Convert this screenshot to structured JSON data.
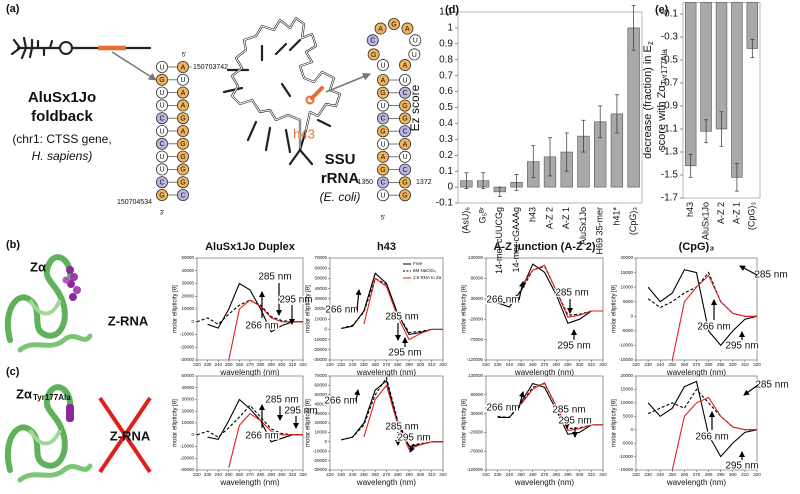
{
  "panel_a": {
    "label": "(a)",
    "alu": {
      "name": "AluSx1Jo",
      "name2": "foldback",
      "source": "(chr1: CTSS gene,",
      "species": "H. sapiens)",
      "start": "150703742",
      "end": "150704534",
      "five": "5'",
      "three": "3'",
      "left": [
        "U",
        "G",
        "U",
        "U",
        "C",
        "U",
        "C",
        "U",
        "U",
        "C",
        "G"
      ],
      "right": [
        "A",
        "U",
        "A",
        "A",
        "G",
        "A",
        "G",
        "G",
        "G",
        "G",
        "C"
      ]
    },
    "ssu": {
      "marker": "h43",
      "name": "SSU",
      "name2": "rRNA",
      "species": "(E. coli)",
      "start": "1350",
      "end": "1372",
      "five": "5'",
      "loop": [
        "U",
        "G",
        "C",
        "A",
        "G",
        "A",
        "U",
        "U",
        "A"
      ],
      "left": [
        "A",
        "G",
        "U",
        "C",
        "G",
        "U",
        "A",
        "G",
        "C",
        "U"
      ],
      "right": [
        "U",
        "C",
        "G",
        "G",
        "C",
        "A",
        "U",
        "C",
        "G",
        "G"
      ]
    }
  },
  "panel_b": {
    "label": "(b)",
    "title": "Zα",
    "target": "Z-RNA"
  },
  "panel_c": {
    "label": "(c)",
    "title": "Zα",
    "title_sub": "Tyr177Ala",
    "target": "Z-RNA"
  },
  "chart_data": [
    {
      "type": "bar",
      "label": "(d)",
      "ylabel": "Ez score",
      "color": "#a9a9a9",
      "categories": [
        "(AsU)₆",
        "G₅ᴮʳ",
        "14-mer cUUCGg",
        "14-mer cGAAAg",
        "h43",
        "A-Z 2",
        "A-Z 1",
        "AluSx1Jo",
        "H69 35-mer",
        "h41*",
        "(CpG)₃"
      ],
      "values": [
        0.04,
        0.04,
        -0.03,
        0.03,
        0.16,
        0.19,
        0.22,
        0.32,
        0.41,
        0.46,
        1.0
      ],
      "errors": [
        0.05,
        0.05,
        0.03,
        0.05,
        0.1,
        0.12,
        0.12,
        0.1,
        0.1,
        0.12,
        0.14
      ],
      "ylim": [
        -0.1,
        1.1
      ],
      "yticks": [
        -0.1,
        0,
        0.1,
        0.2,
        0.3,
        0.4,
        0.5,
        0.6,
        0.7,
        0.8,
        0.9,
        1,
        1.1
      ]
    },
    {
      "type": "bar",
      "label": "(e)",
      "ylabel": "decrease (fraction) in E",
      "ylabel_sub": "z",
      "ylabel2": "score with Zα",
      "ylabel2_sub": "Tyr177Ala",
      "color": "#a9a9a9",
      "categories": [
        "h43",
        "AluSx1Jo",
        "A-Z 2",
        "A-Z 1",
        "(CpG)₃"
      ],
      "values": [
        -1.42,
        -1.12,
        -1.1,
        -1.52,
        -0.4
      ],
      "errors": [
        0.1,
        0.1,
        0.15,
        0.12,
        0.08
      ],
      "ylim": [
        -1.7,
        0
      ],
      "yticks": [
        -1.7,
        -1.5,
        -1.3,
        -1.1,
        -0.9,
        -0.7,
        -0.5,
        -0.3,
        -0.1
      ]
    },
    {
      "type": "line",
      "title": "AluSx1Jo Duplex",
      "xlabel": "wavelength (nm)",
      "ylabel": "molar ellipticity [θ]",
      "x": [
        220,
        230,
        240,
        250,
        260,
        270,
        280,
        290,
        300,
        310,
        320
      ],
      "xlim": [
        220,
        320
      ],
      "xticks": [
        220,
        230,
        240,
        250,
        260,
        270,
        280,
        290,
        300,
        310,
        320
      ],
      "ylim": [
        -30000,
        50000
      ],
      "yticks": [
        -30000,
        -20000,
        -10000,
        0,
        10000,
        20000,
        30000,
        40000,
        50000
      ],
      "series": [
        {
          "color": "#000000",
          "values": [
            null,
            -2000,
            -5000,
            10000,
            30000,
            25000,
            10000,
            -8000,
            -3000,
            0,
            0
          ]
        },
        {
          "color": "#000000",
          "dashed": true,
          "values": [
            0,
            3000,
            -2000,
            6000,
            13000,
            17000,
            13000,
            4000,
            1000,
            0,
            0
          ]
        },
        {
          "color": "#e0201b",
          "values": [
            null,
            null,
            null,
            -30000,
            10000,
            17000,
            12000,
            3000,
            0,
            0,
            0
          ]
        }
      ],
      "annotations": [
        "266 nm",
        "285 nm",
        "295 nm"
      ]
    },
    {
      "type": "line",
      "title": "h43",
      "xlabel": "wavelength (nm)",
      "ylabel": "molar ellipticity [θ]",
      "legend": "upper right",
      "x": [
        220,
        230,
        240,
        250,
        260,
        270,
        280,
        290,
        300,
        310,
        320
      ],
      "xlim": [
        220,
        320
      ],
      "xticks": [
        220,
        230,
        240,
        250,
        260,
        270,
        280,
        290,
        300,
        310,
        320
      ],
      "ylim": [
        -30000,
        70000
      ],
      "yticks": [
        -30000,
        -20000,
        -10000,
        0,
        10000,
        20000,
        30000,
        40000,
        50000,
        60000,
        70000
      ],
      "series": [
        {
          "name": "Free",
          "color": "#000000",
          "values": [
            null,
            1000,
            3000,
            18000,
            55000,
            45000,
            15000,
            -5000,
            -3000,
            0,
            0
          ]
        },
        {
          "name": "6M NaClO₄",
          "color": "#000000",
          "dashed": true,
          "values": [
            null,
            1000,
            4000,
            17000,
            50000,
            44000,
            15000,
            -3000,
            -2000,
            0,
            0
          ]
        },
        {
          "name": "1:6 RNA to Zα",
          "color": "#e0201b",
          "values": [
            null,
            null,
            null,
            5000,
            50000,
            42000,
            12000,
            -10000,
            -4000,
            0,
            0
          ]
        }
      ],
      "annotations": [
        "266 nm",
        "285 nm",
        "295 nm"
      ]
    },
    {
      "type": "line",
      "title": "A-Z junction (A-Z 2)",
      "xlabel": "wavelength (nm)",
      "ylabel": "molar ellipticity [θ]",
      "x": [
        220,
        230,
        240,
        250,
        260,
        270,
        280,
        290,
        300,
        310,
        320
      ],
      "xlim": [
        220,
        320
      ],
      "xticks": [
        220,
        230,
        240,
        250,
        260,
        270,
        280,
        290,
        300,
        310,
        320
      ],
      "ylim": [
        -120000,
        130000
      ],
      "yticks": [
        -120000,
        -70000,
        -20000,
        30000,
        80000,
        130000
      ],
      "series": [
        {
          "color": "#000000",
          "values": [
            null,
            20000,
            10000,
            50000,
            115000,
            95000,
            40000,
            -30000,
            -20000,
            0,
            0
          ]
        },
        {
          "color": "#000000",
          "dashed": true,
          "values": [
            null,
            22000,
            20000,
            50000,
            100000,
            110000,
            50000,
            -10000,
            -8000,
            0,
            0
          ]
        },
        {
          "color": "#e0201b",
          "values": [
            null,
            null,
            null,
            60000,
            100000,
            112000,
            50000,
            -15000,
            -10000,
            0,
            0
          ]
        }
      ],
      "annotations": [
        "266 nm",
        "285 nm",
        "295 nm"
      ]
    },
    {
      "type": "line",
      "title": "(CpG)₃",
      "xlabel": "wavelength (nm)",
      "ylabel": "molar ellipticity [θ]",
      "x": [
        220,
        230,
        240,
        250,
        260,
        270,
        280,
        290,
        300,
        310,
        320
      ],
      "xlim": [
        220,
        320
      ],
      "xticks": [
        220,
        230,
        240,
        250,
        260,
        270,
        280,
        290,
        300,
        310,
        320
      ],
      "ylim": [
        -15000,
        20000
      ],
      "yticks": [
        -15000,
        -10000,
        -5000,
        0,
        5000,
        10000,
        15000,
        20000
      ],
      "series": [
        {
          "color": "#000000",
          "values": [
            null,
            10000,
            5000,
            8000,
            16000,
            15000,
            -5000,
            -10000,
            -5000,
            -1000,
            0
          ]
        },
        {
          "color": "#000000",
          "dashed": true,
          "values": [
            null,
            6000,
            3000,
            5000,
            8000,
            10000,
            15000,
            5000,
            1000,
            0,
            0
          ]
        },
        {
          "color": "#e0201b",
          "values": [
            null,
            null,
            null,
            -15000,
            5000,
            10000,
            14000,
            5000,
            1000,
            0,
            0
          ]
        }
      ],
      "annotations": [
        "266 nm",
        "285 nm",
        "295 nm"
      ]
    },
    {
      "type": "line",
      "xlabel": "wavelength (nm)",
      "ylabel": "molar ellipticity [θ]",
      "x": [
        220,
        230,
        240,
        250,
        260,
        270,
        280,
        290,
        300,
        310,
        320
      ],
      "xlim": [
        220,
        320
      ],
      "xticks": [
        220,
        230,
        240,
        250,
        260,
        270,
        280,
        290,
        300,
        310,
        320
      ],
      "ylim": [
        -30000,
        50000
      ],
      "yticks": [
        -30000,
        -20000,
        -10000,
        0,
        10000,
        20000,
        30000,
        40000,
        50000
      ],
      "series": [
        {
          "color": "#000000",
          "values": [
            null,
            -2000,
            -4000,
            12000,
            30000,
            22000,
            12000,
            -6000,
            -3000,
            0,
            0
          ]
        },
        {
          "color": "#000000",
          "dashed": true,
          "values": [
            0,
            3000,
            -2000,
            6000,
            15000,
            25000,
            15000,
            5000,
            1000,
            0,
            0
          ]
        },
        {
          "color": "#e0201b",
          "values": [
            null,
            null,
            null,
            -28000,
            8000,
            18000,
            12000,
            3000,
            0,
            0,
            0
          ]
        }
      ],
      "annotations": [
        "266 nm",
        "285 nm",
        "295 nm"
      ]
    },
    {
      "type": "line",
      "xlabel": "wavelength (nm)",
      "ylabel": "molar ellipticity [θ]",
      "x": [
        220,
        230,
        240,
        250,
        260,
        270,
        280,
        290,
        300,
        310,
        320
      ],
      "xlim": [
        220,
        320
      ],
      "xticks": [
        220,
        230,
        240,
        250,
        260,
        270,
        280,
        290,
        300,
        310,
        320
      ],
      "ylim": [
        -30000,
        70000
      ],
      "yticks": [
        -30000,
        -20000,
        -10000,
        0,
        10000,
        20000,
        30000,
        40000,
        50000,
        60000,
        70000
      ],
      "series": [
        {
          "color": "#000000",
          "values": [
            null,
            2000,
            5000,
            20000,
            55000,
            65000,
            20000,
            -5000,
            -3000,
            0,
            0
          ]
        },
        {
          "color": "#000000",
          "dashed": true,
          "values": [
            null,
            2000,
            5000,
            18000,
            50000,
            68000,
            22000,
            -4000,
            -2000,
            0,
            0
          ]
        },
        {
          "color": "#e0201b",
          "values": [
            null,
            null,
            null,
            5000,
            45000,
            60000,
            18000,
            -8000,
            -3000,
            0,
            0
          ]
        }
      ],
      "annotations": [
        "266 nm",
        "285 nm",
        "295 nm"
      ]
    },
    {
      "type": "line",
      "xlabel": "wavelength (nm)",
      "ylabel": "molar ellipticity [θ]",
      "x": [
        220,
        230,
        240,
        250,
        260,
        270,
        280,
        290,
        300,
        310,
        320
      ],
      "xlim": [
        220,
        320
      ],
      "xticks": [
        220,
        230,
        240,
        250,
        260,
        270,
        280,
        290,
        300,
        310,
        320
      ],
      "ylim": [
        -120000,
        130000
      ],
      "yticks": [
        -120000,
        -70000,
        -20000,
        30000,
        80000,
        130000
      ],
      "series": [
        {
          "color": "#000000",
          "values": [
            null,
            20000,
            20000,
            60000,
            110000,
            100000,
            40000,
            -25000,
            -20000,
            0,
            0
          ]
        },
        {
          "color": "#000000",
          "dashed": true,
          "values": [
            null,
            22000,
            20000,
            55000,
            100000,
            110000,
            50000,
            -10000,
            -8000,
            0,
            0
          ]
        },
        {
          "color": "#e0201b",
          "values": [
            null,
            null,
            null,
            55000,
            95000,
            112000,
            50000,
            -15000,
            -10000,
            0,
            0
          ]
        }
      ],
      "annotations": [
        "266 nm",
        "285 nm",
        "295 nm"
      ]
    },
    {
      "type": "line",
      "xlabel": "wavelength (nm)",
      "ylabel": "molar ellipticity [θ]",
      "x": [
        220,
        230,
        240,
        250,
        260,
        270,
        280,
        290,
        300,
        310,
        320
      ],
      "xlim": [
        220,
        320
      ],
      "xticks": [
        220,
        230,
        240,
        250,
        260,
        270,
        280,
        290,
        300,
        310,
        320
      ],
      "ylim": [
        -15000,
        20000
      ],
      "yticks": [
        -15000,
        -10000,
        -5000,
        0,
        5000,
        10000,
        15000,
        20000
      ],
      "series": [
        {
          "color": "#000000",
          "values": [
            null,
            10000,
            5000,
            8000,
            16000,
            18000,
            -2000,
            -10000,
            -5000,
            -1000,
            0
          ]
        },
        {
          "color": "#000000",
          "dashed": true,
          "values": [
            null,
            6000,
            8000,
            10000,
            8000,
            15000,
            10000,
            5000,
            1000,
            0,
            0
          ]
        },
        {
          "color": "#e0201b",
          "values": [
            null,
            null,
            null,
            -15000,
            5000,
            10000,
            12000,
            5000,
            1000,
            0,
            0
          ]
        }
      ],
      "annotations": [
        "266 nm",
        "285 nm",
        "295 nm"
      ]
    }
  ]
}
